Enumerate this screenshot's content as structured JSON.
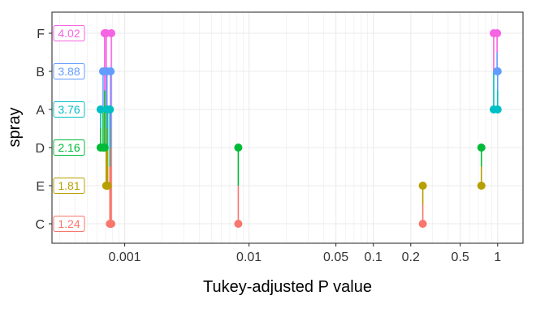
{
  "chart_data": {
    "type": "scatter",
    "title": "",
    "xlabel": "Tukey-adjusted P value",
    "ylabel": "spray",
    "x_scale": "log",
    "xlim": [
      0.00026,
      1.6
    ],
    "x_ticks": [
      {
        "value": 0.001,
        "label": "0.001"
      },
      {
        "value": 0.01,
        "label": "0.01"
      },
      {
        "value": 0.05,
        "label": "0.05"
      },
      {
        "value": 0.1,
        "label": "0.1"
      },
      {
        "value": 0.2,
        "label": "0.2"
      },
      {
        "value": 0.5,
        "label": "0.5"
      },
      {
        "value": 1,
        "label": "1"
      }
    ],
    "categories": [
      "C",
      "E",
      "D",
      "A",
      "B",
      "F"
    ],
    "grid": true,
    "legend": "none",
    "colors": {
      "C": "#F8766D",
      "E": "#B79F00",
      "D": "#00BA38",
      "A": "#00BFC4",
      "B": "#619CFF",
      "F": "#F564E3"
    },
    "labels": [
      {
        "category": "F",
        "text": "4.02",
        "color": "#F564E3"
      },
      {
        "category": "B",
        "text": "3.88",
        "color": "#619CFF"
      },
      {
        "category": "A",
        "text": "3.76",
        "color": "#00BFC4"
      },
      {
        "category": "D",
        "text": "2.16",
        "color": "#00BA38"
      },
      {
        "category": "E",
        "text": "1.81",
        "color": "#B79F00"
      },
      {
        "category": "C",
        "text": "1.24",
        "color": "#F8766D"
      }
    ],
    "comparisons": [
      {
        "from": "C",
        "to": "F",
        "p": 0.00078,
        "color_from": "#F8766D",
        "color_to": "#F564E3"
      },
      {
        "from": "C",
        "to": "B",
        "p": 0.00077,
        "color_from": "#F8766D",
        "color_to": "#619CFF"
      },
      {
        "from": "C",
        "to": "A",
        "p": 0.00076,
        "color_from": "#F8766D",
        "color_to": "#00BFC4"
      },
      {
        "from": "C",
        "to": "D",
        "p": 0.0082,
        "color_from": "#F8766D",
        "color_to": "#00BA38"
      },
      {
        "from": "C",
        "to": "E",
        "p": 0.25,
        "color_from": "#F8766D",
        "color_to": "#B79F00"
      },
      {
        "from": "E",
        "to": "F",
        "p": 0.00071,
        "color_from": "#B79F00",
        "color_to": "#F564E3"
      },
      {
        "from": "E",
        "to": "B",
        "p": 0.00072,
        "color_from": "#B79F00",
        "color_to": "#619CFF"
      },
      {
        "from": "E",
        "to": "A",
        "p": 0.00073,
        "color_from": "#B79F00",
        "color_to": "#00BFC4"
      },
      {
        "from": "E",
        "to": "D",
        "p": 0.74,
        "color_from": "#B79F00",
        "color_to": "#00BA38"
      },
      {
        "from": "D",
        "to": "F",
        "p": 0.00069,
        "color_from": "#00BA38",
        "color_to": "#F564E3"
      },
      {
        "from": "D",
        "to": "B",
        "p": 0.00067,
        "color_from": "#00BA38",
        "color_to": "#619CFF"
      },
      {
        "from": "D",
        "to": "A",
        "p": 0.00064,
        "color_from": "#00BA38",
        "color_to": "#00BFC4"
      },
      {
        "from": "A",
        "to": "F",
        "p": 0.93,
        "color_from": "#00BFC4",
        "color_to": "#F564E3"
      },
      {
        "from": "A",
        "to": "B",
        "p": 1.0,
        "color_from": "#00BFC4",
        "color_to": "#619CFF"
      },
      {
        "from": "B",
        "to": "F",
        "p": 0.99,
        "color_from": "#619CFF",
        "color_to": "#F564E3"
      }
    ]
  }
}
